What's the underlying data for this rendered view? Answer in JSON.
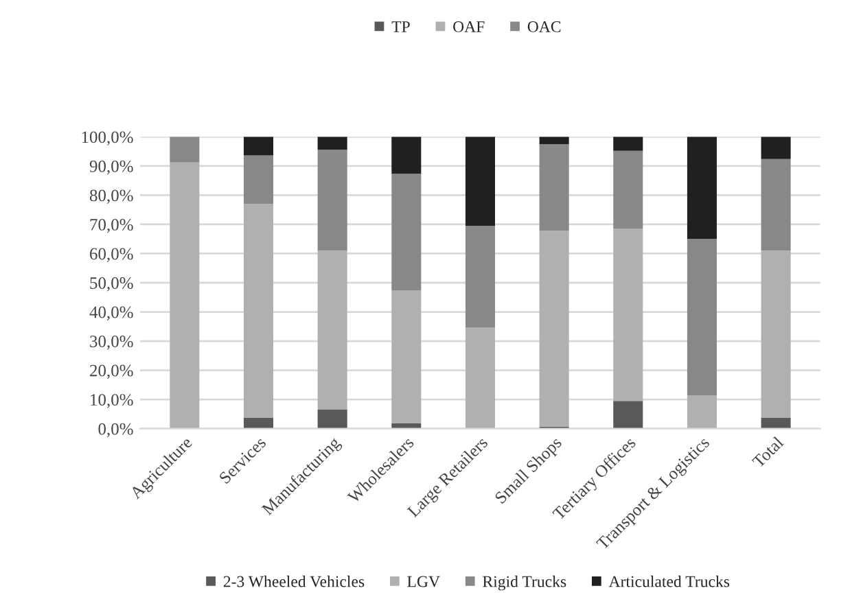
{
  "chart_data": {
    "type": "bar",
    "stacked": true,
    "categories": [
      "Agriculture",
      "Services",
      "Manufacturing",
      "Wholesalers",
      "Large Retailers",
      "Small Shops",
      "Tertiary Offices",
      "Transport & Logistics",
      "Total"
    ],
    "series": [
      {
        "name": "2-3 Wheeled Vehicles",
        "color": "#595959",
        "values": [
          0,
          3.8,
          6.6,
          1.8,
          0,
          0.7,
          9.5,
          0,
          3.8
        ]
      },
      {
        "name": "LGV",
        "color": "#b0b0b0",
        "values": [
          91.2,
          73.2,
          54.4,
          45.5,
          34.6,
          67.1,
          59.1,
          11.3,
          57.2
        ]
      },
      {
        "name": "Rigid Trucks",
        "color": "#888888",
        "values": [
          8.8,
          16.6,
          34.6,
          40.1,
          34.9,
          29.7,
          26.6,
          53.7,
          31.4
        ]
      },
      {
        "name": "Articulated Trucks",
        "color": "#202020",
        "values": [
          0,
          6.4,
          4.4,
          12.6,
          30.5,
          2.5,
          4.8,
          35.0,
          7.6
        ]
      },
      {
        "name": "TP",
        "color": "#595959",
        "values": [
          null,
          null,
          null,
          null,
          null,
          null,
          null,
          null,
          null
        ]
      },
      {
        "name": "OAF",
        "color": "#b0b0b0",
        "values": [
          null,
          null,
          null,
          null,
          null,
          null,
          null,
          null,
          null
        ]
      },
      {
        "name": "OAC",
        "color": "#888888",
        "values": [
          null,
          null,
          null,
          null,
          null,
          null,
          null,
          null,
          null
        ]
      }
    ],
    "ylim": [
      0,
      100
    ],
    "yticks": [
      {
        "value": 0,
        "label": "0,0%"
      },
      {
        "value": 10,
        "label": "10,0%"
      },
      {
        "value": 20,
        "label": "20,0%"
      },
      {
        "value": 30,
        "label": "30,0%"
      },
      {
        "value": 40,
        "label": "40,0%"
      },
      {
        "value": 50,
        "label": "50,0%"
      },
      {
        "value": 60,
        "label": "60,0%"
      },
      {
        "value": 70,
        "label": "70,0%"
      },
      {
        "value": 80,
        "label": "80,0%"
      },
      {
        "value": 90,
        "label": "90,0%"
      },
      {
        "value": 100,
        "label": "100,0%"
      }
    ],
    "grid": "y",
    "legend": "bottom"
  }
}
